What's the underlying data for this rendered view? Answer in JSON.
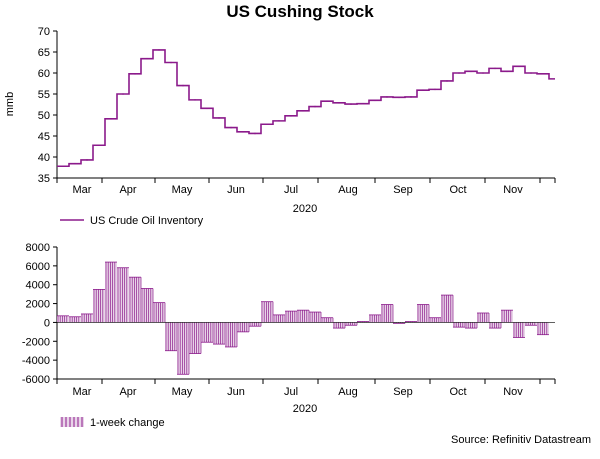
{
  "title": "US Cushing Stock",
  "source": "Source: Refinitiv Datastream",
  "colors": {
    "series": "#8B1A8B",
    "bar_stroke": "#8B1A8B",
    "bar_fill": "#E8D4E8",
    "axis": "#000000"
  },
  "chart_data": [
    {
      "type": "line",
      "title": "US Cushing Stock",
      "ylabel": "mmb",
      "xlabel": "2020",
      "ylim": [
        35,
        70
      ],
      "yticks": [
        35,
        40,
        45,
        50,
        55,
        60,
        65,
        70
      ],
      "month_ticks": [
        "Mar",
        "Apr",
        "May",
        "Jun",
        "Jul",
        "Aug",
        "Sep",
        "Oct",
        "Nov"
      ],
      "legend": "US Crude Oil Inventory",
      "series": [
        {
          "name": "US Crude Oil Inventory",
          "x": [
            0,
            1,
            2,
            3,
            4,
            5,
            6,
            7,
            8,
            9,
            10,
            11,
            12,
            13,
            14,
            15,
            16,
            17,
            18,
            19,
            20,
            21,
            22,
            23,
            24,
            25,
            26,
            27,
            28,
            29,
            30,
            31,
            32,
            33,
            34,
            35,
            36,
            37,
            38,
            39
          ],
          "values": [
            37.8,
            38.4,
            39.3,
            42.8,
            49.1,
            55.0,
            59.8,
            63.4,
            65.5,
            62.5,
            57.0,
            53.6,
            51.6,
            49.3,
            47.0,
            46.0,
            45.6,
            47.8,
            48.6,
            49.8,
            51.0,
            52.0,
            53.3,
            52.9,
            52.6,
            52.7,
            53.5,
            54.3,
            54.2,
            54.3,
            55.9,
            56.1,
            58.1,
            60.0,
            60.4,
            60.0,
            61.1,
            60.4,
            61.6,
            60.0
          ]
        }
      ],
      "tail_values": [
        59.8,
        58.6
      ],
      "xlim": [
        0,
        41.5
      ]
    },
    {
      "type": "bar",
      "xlabel": "2020",
      "ylim": [
        -6000,
        8000
      ],
      "yticks": [
        -6000,
        -4000,
        -2000,
        0,
        2000,
        4000,
        6000,
        8000
      ],
      "month_ticks": [
        "Mar",
        "Apr",
        "May",
        "Jun",
        "Jul",
        "Aug",
        "Sep",
        "Oct",
        "Nov"
      ],
      "legend": "1-week change",
      "series": [
        {
          "name": "1-week change",
          "values": [
            700,
            600,
            900,
            3500,
            6400,
            5800,
            4800,
            3600,
            2100,
            -3000,
            -5500,
            -3300,
            -2100,
            -2300,
            -2600,
            -1000,
            -400,
            2200,
            800,
            1200,
            1300,
            1100,
            500,
            -600,
            -300,
            100,
            800,
            1900,
            -100,
            100,
            1900,
            500,
            2900,
            -500,
            -600,
            1000,
            -600,
            1300,
            -1600,
            -300,
            -1300
          ]
        }
      ],
      "xlim": [
        0,
        41.5
      ]
    }
  ]
}
